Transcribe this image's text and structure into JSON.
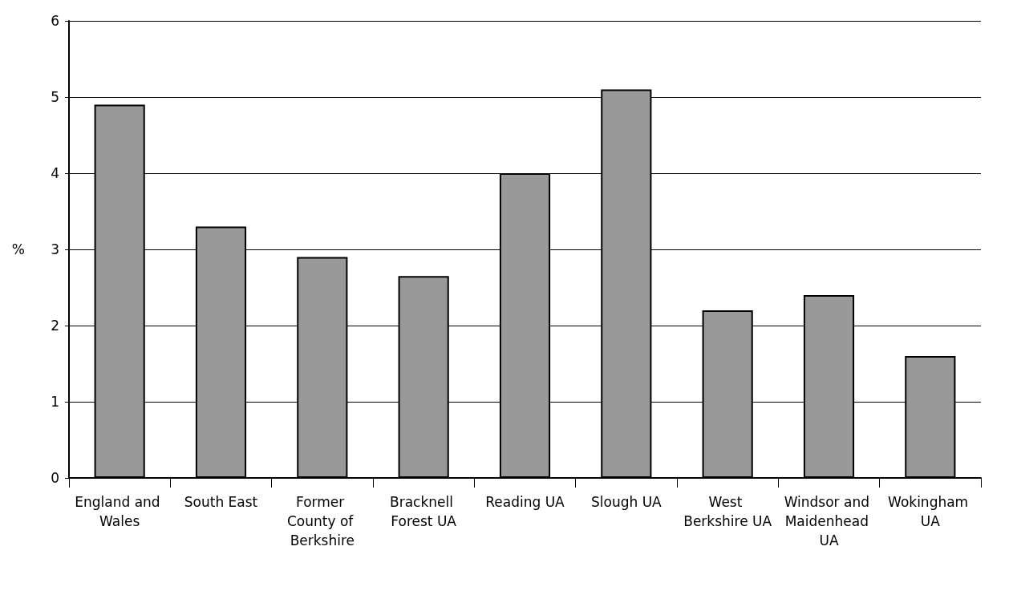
{
  "chart_data": {
    "type": "bar",
    "ylabel": "%",
    "categories": [
      "England and Wales",
      "South East",
      "Former County of Berkshire",
      "Bracknell Forest UA",
      "Reading UA",
      "Slough UA",
      "West Berkshire UA",
      "Windsor and Maidenhead UA",
      "Wokingham UA"
    ],
    "values": [
      4.9,
      3.3,
      2.9,
      2.65,
      4.0,
      5.1,
      2.2,
      2.4,
      1.6
    ],
    "color": "#999999",
    "ylim": [
      0,
      6
    ],
    "yticks": [
      0,
      1,
      2,
      3,
      4,
      5,
      6
    ],
    "grid": "y"
  }
}
